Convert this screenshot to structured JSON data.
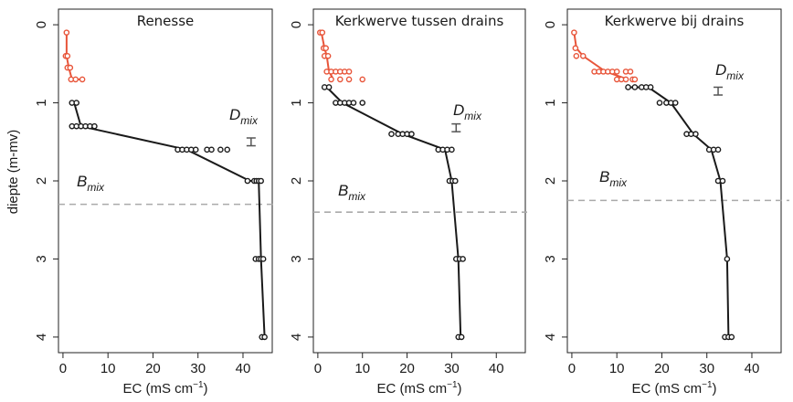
{
  "figure": {
    "ylabel": "diepte (m-mv)",
    "xlabel": "EC (mS cm",
    "xlabel_sup": "−1",
    "xlabel_end": ")"
  },
  "colors": {
    "upper": "#e8553a",
    "lower": "#1a1a1a",
    "bmix_line": "#aaaaaa",
    "dmix_bar": "#555555"
  },
  "chart_data": [
    {
      "type": "scatter",
      "title": "Renesse",
      "xlabel": "EC (mS cm−1)",
      "ylabel": "diepte (m-mv)",
      "xlim": [
        -1,
        46.5
      ],
      "ylim": [
        4.2,
        -0.2
      ],
      "y_reversed": true,
      "xticks": [
        0,
        10,
        20,
        30,
        40
      ],
      "yticks": [
        0,
        1,
        2,
        3,
        4
      ],
      "grid": false,
      "series": [
        {
          "color": "upper",
          "line": [
            [
              0.8,
              0.1
            ],
            [
              0.8,
              0.4
            ],
            [
              1.3,
              0.55
            ],
            [
              2.0,
              0.7
            ],
            [
              4.3,
              0.7
            ]
          ],
          "points": [
            [
              0.8,
              0.1
            ],
            [
              0.6,
              0.4
            ],
            [
              1.0,
              0.4
            ],
            [
              1.0,
              0.55
            ],
            [
              1.6,
              0.55
            ],
            [
              1.8,
              0.7
            ],
            [
              2.8,
              0.7
            ],
            [
              4.3,
              0.7
            ]
          ]
        },
        {
          "color": "lower",
          "line": [
            [
              2.5,
              1.0
            ],
            [
              4.0,
              1.3
            ],
            [
              27.5,
              1.6
            ],
            [
              41.5,
              2.0
            ],
            [
              43.5,
              2.0
            ],
            [
              44.0,
              3.0
            ],
            [
              44.8,
              4.0
            ]
          ],
          "points": [
            [
              2.0,
              1.0
            ],
            [
              3.0,
              1.0
            ],
            [
              2.0,
              1.3
            ],
            [
              3.0,
              1.3
            ],
            [
              4.0,
              1.3
            ],
            [
              5.0,
              1.3
            ],
            [
              6.0,
              1.3
            ],
            [
              7.0,
              1.3
            ],
            [
              25.5,
              1.6
            ],
            [
              26.5,
              1.6
            ],
            [
              27.5,
              1.6
            ],
            [
              28.5,
              1.6
            ],
            [
              29.5,
              1.6
            ],
            [
              32.0,
              1.6
            ],
            [
              33.0,
              1.6
            ],
            [
              35.0,
              1.6
            ],
            [
              36.5,
              1.6
            ],
            [
              41.0,
              2.0
            ],
            [
              42.5,
              2.0
            ],
            [
              43.0,
              2.0
            ],
            [
              43.5,
              2.0
            ],
            [
              44.0,
              2.0
            ],
            [
              42.8,
              3.0
            ],
            [
              43.5,
              3.0
            ],
            [
              44.0,
              3.0
            ],
            [
              44.5,
              3.0
            ],
            [
              44.2,
              4.0
            ],
            [
              44.8,
              4.0
            ]
          ]
        }
      ],
      "bmix": {
        "label": "B",
        "sub": "mix",
        "depth": 2.3
      },
      "dmix": {
        "label": "D",
        "sub": "mix",
        "x": 41.8,
        "y_range": [
          1.45,
          1.55
        ]
      }
    },
    {
      "type": "scatter",
      "title": "Kerkwerve tussen drains",
      "xlabel": "EC (mS cm−1)",
      "xlim": [
        -1,
        46.5
      ],
      "ylim": [
        4.2,
        -0.2
      ],
      "y_reversed": true,
      "xticks": [
        0,
        10,
        20,
        30,
        40
      ],
      "yticks": [
        0,
        1,
        2,
        3,
        4
      ],
      "grid": false,
      "series": [
        {
          "color": "upper",
          "line": [
            [
              0.8,
              0.1
            ],
            [
              1.5,
              0.3
            ],
            [
              2.0,
              0.4
            ],
            [
              2.5,
              0.6
            ],
            [
              3.5,
              0.7
            ]
          ],
          "points": [
            [
              0.5,
              0.1
            ],
            [
              1.0,
              0.1
            ],
            [
              1.3,
              0.3
            ],
            [
              1.8,
              0.3
            ],
            [
              1.5,
              0.4
            ],
            [
              2.3,
              0.4
            ],
            [
              2.0,
              0.6
            ],
            [
              3.0,
              0.6
            ],
            [
              4.0,
              0.6
            ],
            [
              5.0,
              0.6
            ],
            [
              6.0,
              0.6
            ],
            [
              7.0,
              0.6
            ],
            [
              3.0,
              0.7
            ],
            [
              5.0,
              0.7
            ],
            [
              7.0,
              0.7
            ],
            [
              10.0,
              0.7
            ]
          ]
        },
        {
          "color": "lower",
          "line": [
            [
              2.0,
              0.8
            ],
            [
              5.5,
              1.0
            ],
            [
              19.0,
              1.4
            ],
            [
              28.5,
              1.6
            ],
            [
              30.0,
              2.0
            ],
            [
              31.5,
              3.0
            ],
            [
              32.0,
              4.0
            ]
          ],
          "points": [
            [
              1.5,
              0.8
            ],
            [
              2.5,
              0.8
            ],
            [
              4.0,
              1.0
            ],
            [
              5.0,
              1.0
            ],
            [
              6.0,
              1.0
            ],
            [
              7.0,
              1.0
            ],
            [
              8.0,
              1.0
            ],
            [
              10.0,
              1.0
            ],
            [
              16.5,
              1.4
            ],
            [
              18.0,
              1.4
            ],
            [
              19.0,
              1.4
            ],
            [
              20.0,
              1.4
            ],
            [
              21.0,
              1.4
            ],
            [
              27.0,
              1.6
            ],
            [
              28.0,
              1.6
            ],
            [
              29.0,
              1.6
            ],
            [
              30.0,
              1.6
            ],
            [
              29.5,
              2.0
            ],
            [
              30.2,
              2.0
            ],
            [
              30.8,
              2.0
            ],
            [
              31.0,
              3.0
            ],
            [
              31.8,
              3.0
            ],
            [
              32.5,
              3.0
            ],
            [
              31.5,
              4.0
            ],
            [
              32.2,
              4.0
            ]
          ]
        }
      ],
      "bmix": {
        "label": "B",
        "sub": "mix",
        "depth": 2.4
      },
      "dmix": {
        "label": "D",
        "sub": "mix",
        "x": 31.0,
        "y_range": [
          1.27,
          1.37
        ]
      }
    },
    {
      "type": "scatter",
      "title": "Kerkwerve bij drains",
      "xlabel": "EC (mS cm−1)",
      "xlim": [
        -1,
        46.5
      ],
      "ylim": [
        4.2,
        -0.2
      ],
      "y_reversed": true,
      "xticks": [
        0,
        10,
        20,
        30,
        40
      ],
      "yticks": [
        0,
        1,
        2,
        3,
        4
      ],
      "grid": false,
      "series": [
        {
          "color": "upper",
          "line": [
            [
              0.5,
              0.1
            ],
            [
              1.0,
              0.3
            ],
            [
              2.5,
              0.4
            ],
            [
              7.5,
              0.6
            ],
            [
              12.5,
              0.7
            ]
          ],
          "points": [
            [
              0.5,
              0.1
            ],
            [
              0.8,
              0.3
            ],
            [
              1.0,
              0.4
            ],
            [
              2.5,
              0.4
            ],
            [
              5.0,
              0.6
            ],
            [
              6.0,
              0.6
            ],
            [
              7.0,
              0.6
            ],
            [
              8.0,
              0.6
            ],
            [
              9.0,
              0.6
            ],
            [
              10.0,
              0.6
            ],
            [
              12.0,
              0.6
            ],
            [
              13.0,
              0.6
            ],
            [
              10.0,
              0.7
            ],
            [
              11.0,
              0.7
            ],
            [
              12.0,
              0.7
            ],
            [
              13.5,
              0.7
            ],
            [
              14.0,
              0.7
            ]
          ]
        },
        {
          "color": "lower",
          "line": [
            [
              12.5,
              0.8
            ],
            [
              17.0,
              0.8
            ],
            [
              22.0,
              1.0
            ],
            [
              27.0,
              1.4
            ],
            [
              31.0,
              1.6
            ],
            [
              33.0,
              2.0
            ],
            [
              34.5,
              3.0
            ],
            [
              34.8,
              4.0
            ]
          ],
          "points": [
            [
              12.5,
              0.8
            ],
            [
              14.0,
              0.8
            ],
            [
              15.5,
              0.8
            ],
            [
              16.5,
              0.8
            ],
            [
              17.5,
              0.8
            ],
            [
              19.5,
              1.0
            ],
            [
              21.0,
              1.0
            ],
            [
              22.0,
              1.0
            ],
            [
              23.0,
              1.0
            ],
            [
              25.5,
              1.4
            ],
            [
              26.5,
              1.4
            ],
            [
              27.5,
              1.4
            ],
            [
              30.5,
              1.6
            ],
            [
              31.5,
              1.6
            ],
            [
              32.5,
              1.6
            ],
            [
              32.5,
              2.0
            ],
            [
              33.5,
              2.0
            ],
            [
              34.5,
              3.0
            ],
            [
              34.0,
              4.0
            ],
            [
              34.8,
              4.0
            ],
            [
              35.5,
              4.0
            ]
          ]
        }
      ],
      "bmix": {
        "label": "B",
        "sub": "mix",
        "depth": 2.25
      },
      "dmix": {
        "label": "D",
        "sub": "mix",
        "x": 32.5,
        "y_range": [
          0.8,
          0.9
        ]
      }
    }
  ]
}
